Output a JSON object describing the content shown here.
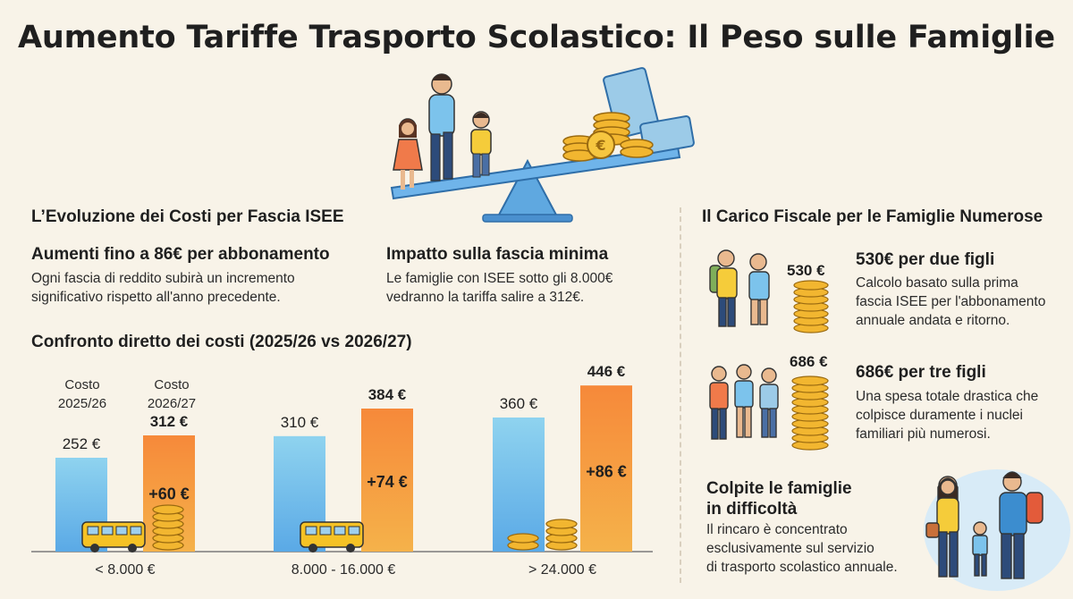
{
  "title": "Aumento Tariffe Trasporto Scolastico: Il Peso sulle Famiglie",
  "left": {
    "section_title": "L’Evoluzione dei Costi per Fascia ISEE",
    "block1": {
      "heading": "Aumenti fino a 86€ per abbonamento",
      "text_line1": "Ogni fascia di reddito subirà un incremento",
      "text_line2": "significativo rispetto all'anno precedente."
    },
    "block2": {
      "heading": "Impatto sulla fascia minima",
      "text_line1": "Le famiglie con ISEE sotto gli 8.000€",
      "text_line2": "vedranno la tariffa salire a 312€."
    },
    "compare_title": "Confronto diretto dei costi (2025/26 vs 2026/27)",
    "legend_old_line1": "Costo",
    "legend_old_line2": "2025/26",
    "legend_new_line1": "Costo",
    "legend_new_line2": "2026/27"
  },
  "chart_data": {
    "type": "bar",
    "title": "Confronto diretto dei costi (2025/26 vs 2026/27)",
    "categories": [
      "< 8.000 €",
      "8.000 - 16.000 €",
      "> 24.000 €"
    ],
    "series": [
      {
        "name": "Costo 2025/26",
        "values": [
          252,
          310,
          360
        ],
        "labels": [
          "252 €",
          "310 €",
          "360 €"
        ],
        "color": "#8fd3ef"
      },
      {
        "name": "Costo 2026/27",
        "values": [
          312,
          384,
          446
        ],
        "labels": [
          "312 €",
          "384 €",
          "446 €"
        ],
        "color": "#f6893a"
      }
    ],
    "deltas": [
      "+60 €",
      "+74 €",
      "+86 €"
    ],
    "ylim": [
      0,
      480
    ]
  },
  "right": {
    "section_title": "Il Carico Fiscale per le Famiglie Numerose",
    "card1": {
      "coin_label": "530 €",
      "heading": "530€ per due figli",
      "text_line1": "Calcolo basato sulla prima",
      "text_line2": "fascia ISEE per l'abbonamento",
      "text_line3": "annuale andata e ritorno."
    },
    "card2": {
      "coin_label": "686 €",
      "heading": "686€ per tre figli",
      "text_line1": "Una spesa totale drastica che",
      "text_line2": "colpisce duramente i nuclei",
      "text_line3": "familiari più numerosi."
    },
    "card3": {
      "heading_line1": "Colpite le famiglie",
      "heading_line2": "in difficoltà",
      "text_line1": "Il rincaro è concentrato",
      "text_line2": "esclusivamente sul servizio",
      "text_line3": "di trasporto scolastico annuale."
    }
  },
  "colors": {
    "background": "#f8f3e8",
    "bar_old_top": "#8fd3ef",
    "bar_old_bottom": "#5aa9e6",
    "bar_new_top": "#f6893a",
    "bar_new_bottom": "#f5b24a",
    "seesaw": "#5fa8e0",
    "coin": "#f2b630"
  }
}
